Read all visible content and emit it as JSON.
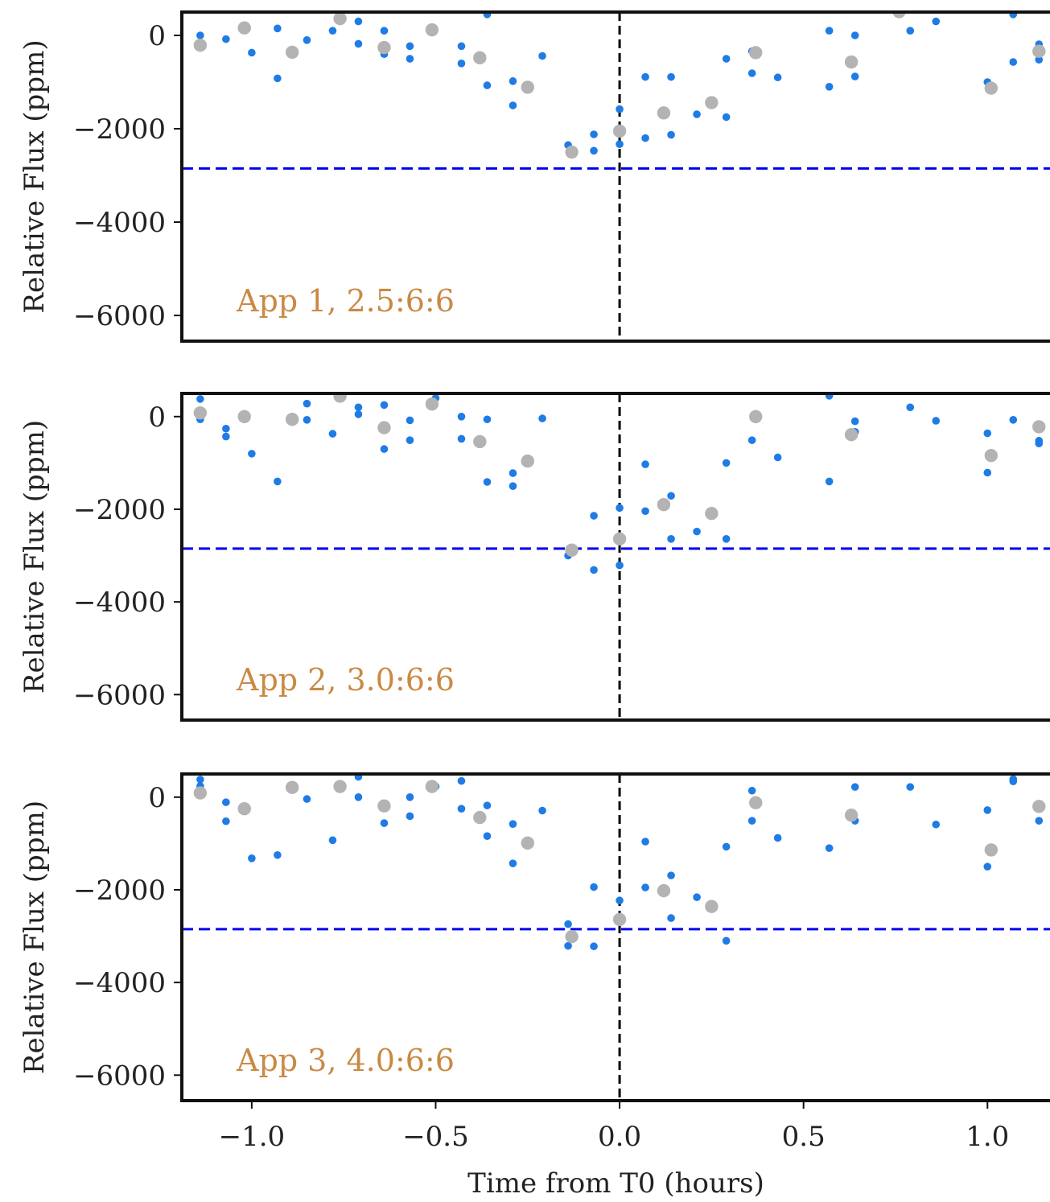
{
  "colors": {
    "binned_points": "#1f7be6",
    "unbinned_points": "#b3b3b3",
    "depth_line": "#0000ee",
    "t0_line": "#000000",
    "panel_label": "#c98a44",
    "frame": "#111111"
  },
  "chart_data": [
    {
      "type": "scatter",
      "panel_label": "App 1, 2.5:6:6",
      "ylabel": "Relative Flux (ppm)",
      "xlabel": "",
      "xlim": [
        -1.19,
        1.17
      ],
      "ylim": [
        -6550,
        500
      ],
      "xticks": [],
      "yticks": [
        0,
        -2000,
        -4000,
        -6000
      ],
      "ytick_labels": [
        "0",
        "−2000",
        "−4000",
        "−6000"
      ],
      "reference_lines": {
        "vertical_x": 0.0,
        "horizontal_y": -2850
      },
      "series": [
        {
          "role": "binned",
          "points": [
            [
              -1.14,
              0
            ],
            [
              -1.07,
              -80
            ],
            [
              -1.0,
              -370
            ],
            [
              -0.93,
              150
            ],
            [
              -0.93,
              -920
            ],
            [
              -0.85,
              -100
            ],
            [
              -0.78,
              100
            ],
            [
              -0.71,
              300
            ],
            [
              -0.71,
              -180
            ],
            [
              -0.64,
              100
            ],
            [
              -0.64,
              -400
            ],
            [
              -0.57,
              -230
            ],
            [
              -0.57,
              -500
            ],
            [
              -0.43,
              -230
            ],
            [
              -0.43,
              -600
            ],
            [
              -0.36,
              450
            ],
            [
              -0.36,
              -1070
            ],
            [
              -0.29,
              -980
            ],
            [
              -0.29,
              -1500
            ],
            [
              -0.21,
              -440
            ],
            [
              -0.14,
              -2350
            ],
            [
              -0.07,
              -2120
            ],
            [
              -0.07,
              -2470
            ],
            [
              0.0,
              -1580
            ],
            [
              0.0,
              -2330
            ],
            [
              0.07,
              -890
            ],
            [
              0.07,
              -2200
            ],
            [
              0.14,
              -890
            ],
            [
              0.14,
              -2130
            ],
            [
              0.21,
              -1690
            ],
            [
              0.29,
              -500
            ],
            [
              0.29,
              -1750
            ],
            [
              0.36,
              -340
            ],
            [
              0.36,
              -810
            ],
            [
              0.43,
              -900
            ],
            [
              0.57,
              100
            ],
            [
              0.57,
              -1100
            ],
            [
              0.64,
              0
            ],
            [
              0.64,
              -880
            ],
            [
              0.79,
              100
            ],
            [
              0.86,
              300
            ],
            [
              1.0,
              -1000
            ],
            [
              1.07,
              450
            ],
            [
              1.07,
              -570
            ],
            [
              1.14,
              -190
            ],
            [
              1.14,
              -520
            ]
          ]
        },
        {
          "role": "unbinned",
          "points": [
            [
              -1.14,
              -210
            ],
            [
              -1.02,
              160
            ],
            [
              -0.89,
              -360
            ],
            [
              -0.76,
              360
            ],
            [
              -0.64,
              -260
            ],
            [
              -0.51,
              120
            ],
            [
              -0.38,
              -480
            ],
            [
              -0.25,
              -1110
            ],
            [
              -0.13,
              -2500
            ],
            [
              -0.0,
              -2050
            ],
            [
              0.12,
              -1660
            ],
            [
              0.25,
              -1440
            ],
            [
              0.37,
              -370
            ],
            [
              0.63,
              -570
            ],
            [
              0.76,
              510
            ],
            [
              1.01,
              -1130
            ],
            [
              1.14,
              -340
            ]
          ]
        }
      ]
    },
    {
      "type": "scatter",
      "panel_label": "App 2, 3.0:6:6",
      "ylabel": "Relative Flux (ppm)",
      "xlabel": "",
      "xlim": [
        -1.19,
        1.17
      ],
      "ylim": [
        -6550,
        500
      ],
      "xticks": [],
      "yticks": [
        0,
        -2000,
        -4000,
        -6000
      ],
      "ytick_labels": [
        "0",
        "−2000",
        "−4000",
        "−6000"
      ],
      "reference_lines": {
        "vertical_x": 0.0,
        "horizontal_y": -2850
      },
      "series": [
        {
          "role": "binned",
          "points": [
            [
              -1.14,
              380
            ],
            [
              -1.14,
              -60
            ],
            [
              -1.07,
              -260
            ],
            [
              -1.07,
              -430
            ],
            [
              -1.0,
              -800
            ],
            [
              -0.93,
              -1400
            ],
            [
              -0.85,
              280
            ],
            [
              -0.85,
              -70
            ],
            [
              -0.78,
              -370
            ],
            [
              -0.71,
              200
            ],
            [
              -0.71,
              50
            ],
            [
              -0.64,
              250
            ],
            [
              -0.64,
              -700
            ],
            [
              -0.57,
              -80
            ],
            [
              -0.57,
              -510
            ],
            [
              -0.5,
              400
            ],
            [
              -0.43,
              0
            ],
            [
              -0.43,
              -480
            ],
            [
              -0.36,
              -60
            ],
            [
              -0.36,
              -1410
            ],
            [
              -0.29,
              -1220
            ],
            [
              -0.29,
              -1500
            ],
            [
              -0.21,
              -40
            ],
            [
              -0.14,
              -3000
            ],
            [
              -0.07,
              -2140
            ],
            [
              -0.07,
              -3310
            ],
            [
              0.0,
              -1970
            ],
            [
              0.0,
              -3210
            ],
            [
              0.07,
              -1030
            ],
            [
              0.07,
              -2040
            ],
            [
              0.14,
              -1710
            ],
            [
              0.14,
              -2640
            ],
            [
              0.21,
              -2480
            ],
            [
              0.29,
              -1000
            ],
            [
              0.29,
              -2640
            ],
            [
              0.36,
              -510
            ],
            [
              0.43,
              -880
            ],
            [
              0.57,
              450
            ],
            [
              0.57,
              -1400
            ],
            [
              0.64,
              -100
            ],
            [
              0.64,
              -330
            ],
            [
              0.79,
              200
            ],
            [
              0.86,
              -90
            ],
            [
              1.0,
              -360
            ],
            [
              1.0,
              -1210
            ],
            [
              1.07,
              -70
            ],
            [
              1.14,
              -520
            ],
            [
              1.14,
              -580
            ]
          ]
        },
        {
          "role": "unbinned",
          "points": [
            [
              -1.14,
              80
            ],
            [
              -1.02,
              0
            ],
            [
              -0.89,
              -60
            ],
            [
              -0.76,
              440
            ],
            [
              -0.64,
              -240
            ],
            [
              -0.51,
              270
            ],
            [
              -0.38,
              -540
            ],
            [
              -0.25,
              -960
            ],
            [
              -0.13,
              -2880
            ],
            [
              -0.0,
              -2640
            ],
            [
              0.12,
              -1900
            ],
            [
              0.25,
              -2090
            ],
            [
              0.37,
              0
            ],
            [
              0.63,
              -390
            ],
            [
              1.01,
              -840
            ],
            [
              1.14,
              -220
            ]
          ]
        }
      ]
    },
    {
      "type": "scatter",
      "panel_label": "App 3, 4.0:6:6",
      "ylabel": "Relative Flux (ppm)",
      "xlabel": "Time from T0 (hours)",
      "xlim": [
        -1.19,
        1.17
      ],
      "ylim": [
        -6550,
        500
      ],
      "xticks": [
        -1.0,
        -0.5,
        0.0,
        0.5,
        1.0
      ],
      "xtick_labels": [
        "−1.0",
        "−0.5",
        "0.0",
        "0.5",
        "1.0"
      ],
      "yticks": [
        0,
        -2000,
        -4000,
        -6000
      ],
      "ytick_labels": [
        "0",
        "−2000",
        "−4000",
        "−6000"
      ],
      "reference_lines": {
        "vertical_x": 0.0,
        "horizontal_y": -2850
      },
      "series": [
        {
          "role": "binned",
          "points": [
            [
              -1.14,
              380
            ],
            [
              -1.14,
              240
            ],
            [
              -1.07,
              -110
            ],
            [
              -1.07,
              -520
            ],
            [
              -1.0,
              -1320
            ],
            [
              -0.93,
              -1250
            ],
            [
              -0.85,
              -40
            ],
            [
              -0.78,
              -930
            ],
            [
              -0.71,
              440
            ],
            [
              -0.71,
              0
            ],
            [
              -0.64,
              -560
            ],
            [
              -0.57,
              0
            ],
            [
              -0.57,
              -410
            ],
            [
              -0.5,
              230
            ],
            [
              -0.43,
              350
            ],
            [
              -0.43,
              -250
            ],
            [
              -0.36,
              -180
            ],
            [
              -0.36,
              -840
            ],
            [
              -0.29,
              -580
            ],
            [
              -0.29,
              -1430
            ],
            [
              -0.21,
              -290
            ],
            [
              -0.14,
              -2740
            ],
            [
              -0.14,
              -3210
            ],
            [
              -0.07,
              -1940
            ],
            [
              -0.07,
              -3220
            ],
            [
              0.0,
              -2230
            ],
            [
              0.07,
              -960
            ],
            [
              0.07,
              -1950
            ],
            [
              0.14,
              -1690
            ],
            [
              0.14,
              -2610
            ],
            [
              0.21,
              -2160
            ],
            [
              0.29,
              -1070
            ],
            [
              0.29,
              -3100
            ],
            [
              0.36,
              140
            ],
            [
              0.36,
              -510
            ],
            [
              0.43,
              -880
            ],
            [
              0.57,
              -1100
            ],
            [
              0.64,
              220
            ],
            [
              0.64,
              -510
            ],
            [
              0.79,
              220
            ],
            [
              0.86,
              -590
            ],
            [
              1.0,
              -280
            ],
            [
              1.0,
              -1500
            ],
            [
              1.07,
              390
            ],
            [
              1.07,
              340
            ],
            [
              1.14,
              -510
            ]
          ]
        },
        {
          "role": "unbinned",
          "points": [
            [
              -1.14,
              90
            ],
            [
              -1.02,
              -250
            ],
            [
              -0.89,
              210
            ],
            [
              -0.76,
              230
            ],
            [
              -0.64,
              -190
            ],
            [
              -0.51,
              230
            ],
            [
              -0.38,
              -440
            ],
            [
              -0.25,
              -990
            ],
            [
              -0.13,
              -3010
            ],
            [
              -0.0,
              -2640
            ],
            [
              0.12,
              -2020
            ],
            [
              0.25,
              -2360
            ],
            [
              0.37,
              -120
            ],
            [
              0.63,
              -390
            ],
            [
              1.01,
              -1140
            ],
            [
              1.14,
              -200
            ]
          ]
        }
      ]
    }
  ]
}
